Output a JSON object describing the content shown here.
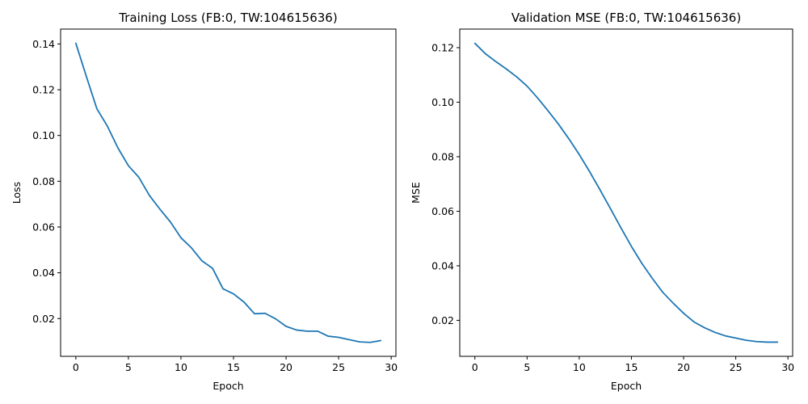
{
  "chart_data": [
    {
      "type": "line",
      "title": "Training Loss (FB:0, TW:104615636)",
      "xlabel": "Epoch",
      "ylabel": "Loss",
      "xlim": [
        -1.45,
        30.45
      ],
      "ylim": [
        0.0035,
        0.1465
      ],
      "xticks": [
        0,
        5,
        10,
        15,
        20,
        25,
        30
      ],
      "xtick_labels": [
        "0",
        "5",
        "10",
        "15",
        "20",
        "25",
        "30"
      ],
      "yticks": [
        0.02,
        0.04,
        0.06,
        0.08,
        0.1,
        0.12,
        0.14
      ],
      "ytick_labels": [
        "0.02",
        "0.04",
        "0.06",
        "0.08",
        "0.10",
        "0.12",
        "0.14"
      ],
      "grid": false,
      "series": [
        {
          "color": "#1f77b4",
          "x": [
            0,
            1,
            2,
            3,
            4,
            5,
            6,
            7,
            8,
            9,
            10,
            11,
            12,
            13,
            14,
            15,
            16,
            17,
            18,
            19,
            20,
            21,
            22,
            23,
            24,
            25,
            26,
            27,
            28,
            29
          ],
          "y": [
            0.1403,
            0.1258,
            0.1117,
            0.1041,
            0.0946,
            0.0868,
            0.0817,
            0.0738,
            0.0678,
            0.0622,
            0.0553,
            0.0509,
            0.0452,
            0.042,
            0.033,
            0.0308,
            0.0272,
            0.0221,
            0.0223,
            0.0199,
            0.0166,
            0.015,
            0.0145,
            0.0145,
            0.0123,
            0.0118,
            0.0108,
            0.0098,
            0.0096,
            0.0104
          ]
        }
      ]
    },
    {
      "type": "line",
      "title": "Validation MSE (FB:0, TW:104615636)",
      "xlabel": "Epoch",
      "ylabel": "MSE",
      "xlim": [
        -1.45,
        30.45
      ],
      "ylim": [
        0.0068,
        0.1268
      ],
      "xticks": [
        0,
        5,
        10,
        15,
        20,
        25,
        30
      ],
      "xtick_labels": [
        "0",
        "5",
        "10",
        "15",
        "20",
        "25",
        "30"
      ],
      "yticks": [
        0.02,
        0.04,
        0.06,
        0.08,
        0.1,
        0.12
      ],
      "ytick_labels": [
        "0.02",
        "0.04",
        "0.06",
        "0.08",
        "0.10",
        "0.12"
      ],
      "grid": false,
      "series": [
        {
          "color": "#1f77b4",
          "x": [
            0,
            1,
            2,
            3,
            4,
            5,
            6,
            7,
            8,
            9,
            10,
            11,
            12,
            13,
            14,
            15,
            16,
            17,
            18,
            19,
            20,
            21,
            22,
            23,
            24,
            25,
            26,
            27,
            28,
            29
          ],
          "y": [
            0.1216,
            0.1178,
            0.1149,
            0.1122,
            0.1093,
            0.1059,
            0.1016,
            0.0969,
            0.092,
            0.0866,
            0.0808,
            0.0745,
            0.0678,
            0.0609,
            0.0539,
            0.0471,
            0.0409,
            0.0354,
            0.0303,
            0.0263,
            0.0226,
            0.0194,
            0.0173,
            0.0156,
            0.0143,
            0.0135,
            0.0127,
            0.0122,
            0.012,
            0.012
          ]
        }
      ]
    }
  ]
}
